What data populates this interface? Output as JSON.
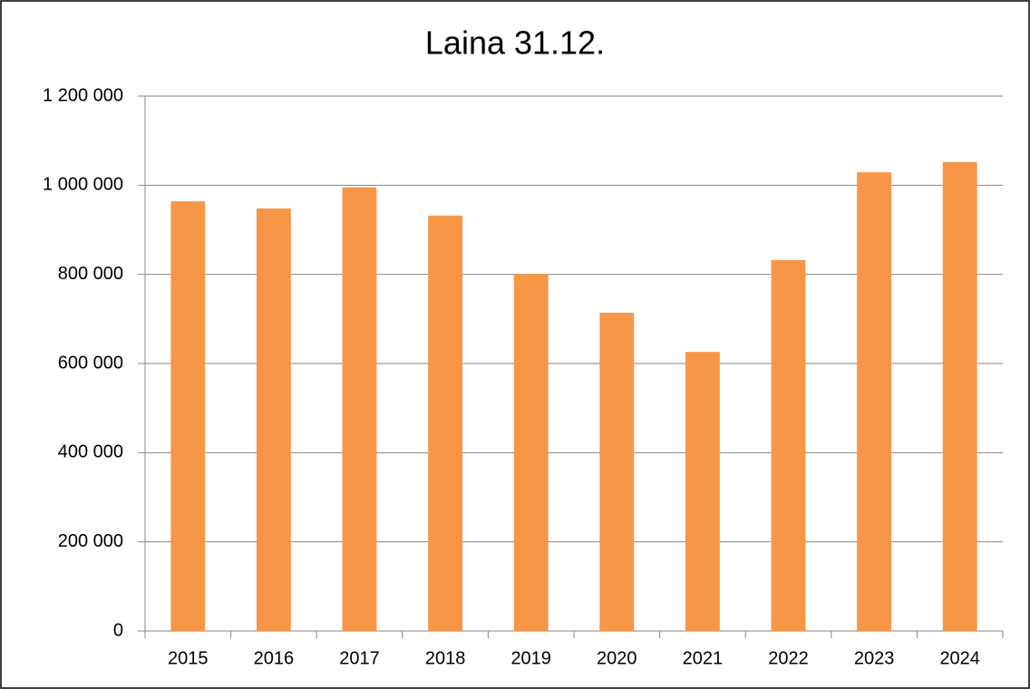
{
  "chart_data": {
    "type": "bar",
    "title": "Laina 31.12.",
    "categories": [
      "2015",
      "2016",
      "2017",
      "2018",
      "2019",
      "2020",
      "2021",
      "2022",
      "2023",
      "2024"
    ],
    "values": [
      964000,
      948000,
      995000,
      932000,
      801000,
      714000,
      626000,
      832000,
      1029000,
      1052000
    ],
    "color": "#f79646",
    "ylim": [
      0,
      1200000
    ],
    "yticks": [
      0,
      {
        "value": 200000,
        "label": "200 000"
      },
      {
        "value": 400000,
        "label": "400 000"
      },
      {
        "value": 600000,
        "label": "600 000"
      },
      {
        "value": 800000,
        "label": "800 000"
      },
      {
        "value": 1000000,
        "label": "1 000 000"
      },
      {
        "value": 1200000,
        "label": "1 200 000"
      }
    ],
    "grid": true
  }
}
